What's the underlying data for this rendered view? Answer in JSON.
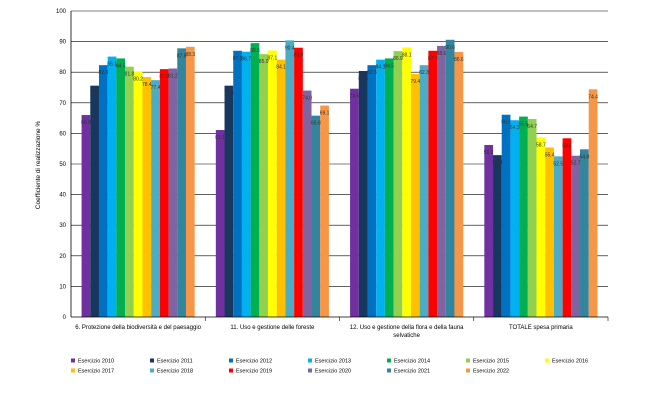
{
  "chart_data": {
    "type": "bar",
    "ylabel": "Coefficiente di realizzazione %",
    "ylim": [
      0,
      100
    ],
    "yticks": [
      0,
      10,
      20,
      30,
      40,
      50,
      60,
      70,
      80,
      90,
      100
    ],
    "grid": true,
    "legend_position": "bottom",
    "categories": [
      [
        "6. Protezione della biodiversità e del paesaggio"
      ],
      [
        "11. Uso e gestione delle foreste"
      ],
      [
        "12. Uso e gestione della flora e della fauna",
        "selvatiche"
      ],
      [
        "TOTALE spesa primaria"
      ]
    ],
    "series": [
      {
        "name": "Esercizio 2010",
        "color": "#7030A0",
        "values": [
          66.0,
          61.1,
          74.6,
          56.2
        ]
      },
      {
        "name": "Esercizio 2011",
        "color": "#17375E",
        "values": [
          75.6,
          75.6,
          80.4,
          52.9
        ]
      },
      {
        "name": "Esercizio 2012",
        "color": "#0070C0",
        "values": [
          82.3,
          87.0,
          82.3,
          66.1
        ]
      },
      {
        "name": "Esercizio 2013",
        "color": "#00B0F0",
        "values": [
          85.1,
          86.7,
          84.1,
          64.3
        ]
      },
      {
        "name": "Esercizio 2014",
        "color": "#00B050",
        "values": [
          84.5,
          89.5,
          84.5,
          65.5
        ]
      },
      {
        "name": "Esercizio 2015",
        "color": "#92D050",
        "values": [
          81.8,
          85.9,
          86.9,
          64.7
        ]
      },
      {
        "name": "Esercizio 2016",
        "color": "#FFFF00",
        "values": [
          80.2,
          87.1,
          88.1,
          58.7
        ]
      },
      {
        "name": "Esercizio 2017",
        "color": "#FFC000",
        "values": [
          78.4,
          84.1,
          79.4,
          55.4
        ]
      },
      {
        "name": "Esercizio 2018",
        "color": "#4BACC6",
        "values": [
          77.4,
          90.4,
          82.3,
          52.5
        ]
      },
      {
        "name": "Esercizio 2019",
        "color": "#FF0000",
        "values": [
          81.0,
          88.0,
          87.0,
          58.4
        ]
      },
      {
        "name": "Esercizio 2020",
        "color": "#8064A2",
        "values": [
          81.2,
          74.0,
          88.6,
          52.7
        ]
      },
      {
        "name": "Esercizio 2021",
        "color": "#31859C",
        "values": [
          87.8,
          65.8,
          90.6,
          54.8
        ]
      },
      {
        "name": "Esercizio 2022",
        "color": "#F79646",
        "values": [
          88.3,
          69.1,
          86.6,
          74.4
        ]
      }
    ]
  }
}
